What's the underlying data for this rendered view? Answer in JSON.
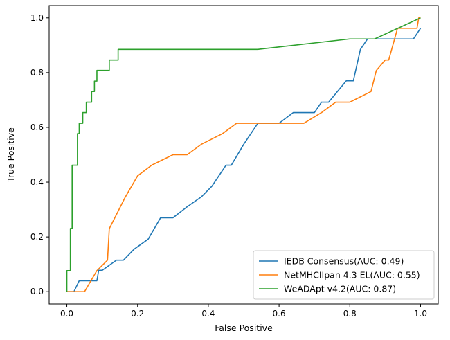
{
  "chart_data": {
    "type": "line",
    "title": "",
    "xlabel": "False Positive",
    "ylabel": "True Positive",
    "xlim": [
      -0.05,
      1.05
    ],
    "ylim": [
      -0.045,
      1.045
    ],
    "xticks": [
      0.0,
      0.2,
      0.4,
      0.6,
      0.8,
      1.0
    ],
    "yticks": [
      0.0,
      0.2,
      0.4,
      0.6,
      0.8,
      1.0
    ],
    "xtick_labels": [
      "0.0",
      "0.2",
      "0.4",
      "0.6",
      "0.8",
      "1.0"
    ],
    "ytick_labels": [
      "0.0",
      "0.2",
      "0.4",
      "0.6",
      "0.8",
      "1.0"
    ],
    "grid": false,
    "legend_position": "lower-right",
    "series": [
      {
        "name": "IEDB Consensus(AUC: 0.49)",
        "color": "#1f77b4",
        "x": [
          0.0,
          0.02,
          0.035,
          0.07,
          0.085,
          0.09,
          0.1,
          0.14,
          0.16,
          0.19,
          0.23,
          0.265,
          0.3,
          0.34,
          0.38,
          0.41,
          0.45,
          0.465,
          0.5,
          0.54,
          0.6,
          0.64,
          0.7,
          0.72,
          0.74,
          0.79,
          0.81,
          0.83,
          0.85,
          0.98,
          1.0
        ],
        "y": [
          0.0,
          0.0,
          0.04,
          0.04,
          0.04,
          0.078,
          0.078,
          0.115,
          0.115,
          0.155,
          0.192,
          0.27,
          0.27,
          0.31,
          0.346,
          0.385,
          0.462,
          0.462,
          0.538,
          0.615,
          0.615,
          0.654,
          0.654,
          0.692,
          0.692,
          0.77,
          0.77,
          0.885,
          0.923,
          0.923,
          0.962
        ]
      },
      {
        "name": "NetMHCIIpan 4.3 EL(AUC: 0.55)",
        "color": "#ff7f0e",
        "x": [
          0.0,
          0.05,
          0.085,
          0.115,
          0.12,
          0.165,
          0.2,
          0.24,
          0.3,
          0.34,
          0.38,
          0.44,
          0.48,
          0.53,
          0.67,
          0.72,
          0.76,
          0.8,
          0.86,
          0.875,
          0.9,
          0.91,
          0.935,
          0.99,
          0.995,
          1.0
        ],
        "y": [
          0.0,
          0.0,
          0.077,
          0.115,
          0.23,
          0.345,
          0.423,
          0.462,
          0.5,
          0.5,
          0.538,
          0.577,
          0.615,
          0.615,
          0.615,
          0.654,
          0.692,
          0.692,
          0.731,
          0.808,
          0.846,
          0.846,
          0.962,
          0.962,
          1.0,
          1.0
        ]
      },
      {
        "name": "WeADApt v4.2(AUC: 0.87)",
        "color": "#2ca02c",
        "x": [
          0.0,
          0.0,
          0.01,
          0.01,
          0.015,
          0.015,
          0.03,
          0.03,
          0.035,
          0.035,
          0.045,
          0.045,
          0.055,
          0.055,
          0.07,
          0.07,
          0.078,
          0.078,
          0.085,
          0.085,
          0.12,
          0.12,
          0.145,
          0.145,
          0.155,
          0.54,
          0.8,
          0.87,
          1.0
        ],
        "y": [
          0.0,
          0.077,
          0.077,
          0.231,
          0.231,
          0.462,
          0.462,
          0.577,
          0.577,
          0.615,
          0.615,
          0.654,
          0.654,
          0.692,
          0.692,
          0.731,
          0.731,
          0.769,
          0.769,
          0.808,
          0.808,
          0.846,
          0.846,
          0.885,
          0.885,
          0.885,
          0.923,
          0.923,
          1.0
        ]
      }
    ]
  }
}
